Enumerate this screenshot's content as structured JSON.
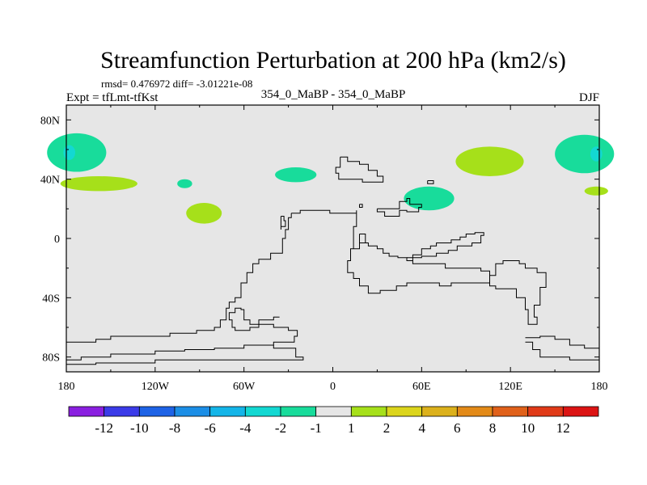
{
  "chart_data": {
    "type": "heatmap",
    "title": "Streamfunction Perturbation at 200 hPa (km2/s)",
    "stats": "rmsd= 0.476972 diff= -3.01221e-08",
    "experiment": "Expt = tfLmt-tfKst",
    "comparison": "354_0_MaBP - 354_0_MaBP",
    "season": "DJF",
    "x_axis": {
      "range": [
        -180,
        180
      ],
      "ticks": [
        -180,
        -120,
        -60,
        0,
        60,
        120,
        180
      ],
      "tick_labels": [
        "180",
        "120W",
        "60W",
        "0",
        "60E",
        "120E",
        "180"
      ]
    },
    "y_axis": {
      "range": [
        -90,
        90
      ],
      "ticks": [
        80,
        40,
        0,
        -40,
        -80
      ],
      "tick_labels": [
        "80N",
        "40N",
        "0",
        "40S",
        "80S"
      ]
    },
    "colorbar": {
      "levels": [
        "-12",
        "-10",
        "-8",
        "-6",
        "-4",
        "-2",
        "-1",
        "1",
        "2",
        "4",
        "6",
        "8",
        "10",
        "12"
      ],
      "colors": [
        "#8a1fe0",
        "#3b3be8",
        "#1e63e6",
        "#1b8ee6",
        "#14b5e8",
        "#13d8d2",
        "#18dc9b",
        "#e6e6e6",
        "#a6e01a",
        "#dcd51c",
        "#dcb11c",
        "#e38a18",
        "#e0611a",
        "#e03a18",
        "#dc1414"
      ]
    },
    "anomalies": [
      {
        "lon": -173,
        "lat": 58,
        "rx": 20,
        "ry": 13,
        "value": -1.5
      },
      {
        "lon": -178,
        "lat": 58,
        "rx": 4,
        "ry": 5,
        "value": -2.5
      },
      {
        "lon": -158,
        "lat": 37,
        "rx": 26,
        "ry": 5,
        "value": 1.5
      },
      {
        "lon": -100,
        "lat": 37,
        "rx": 5,
        "ry": 3,
        "value": -1.5
      },
      {
        "lon": -87,
        "lat": 17,
        "rx": 12,
        "ry": 7,
        "value": 1.5
      },
      {
        "lon": -25,
        "lat": 43,
        "rx": 14,
        "ry": 5,
        "value": -1.5
      },
      {
        "lon": 65,
        "lat": 27,
        "rx": 17,
        "ry": 8,
        "value": -1.5
      },
      {
        "lon": 106,
        "lat": 52,
        "rx": 23,
        "ry": 10,
        "value": 1.5
      },
      {
        "lon": 170,
        "lat": 57,
        "rx": 20,
        "ry": 13,
        "value": -1.5
      },
      {
        "lon": 178,
        "lat": 57,
        "rx": 4,
        "ry": 5,
        "value": -2.5
      },
      {
        "lon": 178,
        "lat": 32,
        "rx": 8,
        "ry": 3,
        "value": 1.5
      }
    ],
    "coastlines": [
      [
        [
          5,
          55
        ],
        [
          10,
          55
        ],
        [
          10,
          52
        ],
        [
          18,
          52
        ],
        [
          18,
          50
        ],
        [
          24,
          50
        ],
        [
          24,
          46
        ],
        [
          30,
          46
        ],
        [
          30,
          42
        ],
        [
          34,
          42
        ],
        [
          34,
          38
        ],
        [
          30,
          38
        ],
        [
          24,
          38
        ],
        [
          20,
          40
        ],
        [
          10,
          40
        ],
        [
          4,
          44
        ],
        [
          2,
          48
        ],
        [
          5,
          52
        ],
        [
          5,
          55
        ]
      ],
      [
        [
          -28,
          17
        ],
        [
          -22,
          19
        ],
        [
          -16,
          19
        ],
        [
          -12,
          19
        ],
        [
          -2,
          17
        ],
        [
          8,
          17
        ],
        [
          14,
          17
        ],
        [
          16,
          19
        ],
        [
          16,
          8
        ],
        [
          14,
          8
        ],
        [
          14,
          -7
        ],
        [
          12,
          -7
        ],
        [
          12,
          -15
        ],
        [
          10,
          -15
        ],
        [
          10,
          -23
        ],
        [
          14,
          -27
        ],
        [
          18,
          -32
        ],
        [
          24,
          -37
        ],
        [
          30,
          -37
        ],
        [
          32,
          -35
        ],
        [
          40,
          -35
        ],
        [
          43,
          -32
        ],
        [
          50,
          -30
        ],
        [
          70,
          -30
        ],
        [
          72,
          -32
        ],
        [
          76,
          -32
        ],
        [
          80,
          -30
        ],
        [
          100,
          -30
        ],
        [
          106,
          -25
        ],
        [
          110,
          -17
        ],
        [
          115,
          -15
        ],
        [
          122,
          -15
        ],
        [
          126,
          -17
        ],
        [
          130,
          -20
        ],
        [
          138,
          -23
        ],
        [
          144,
          -33
        ],
        [
          140,
          -40
        ],
        [
          140,
          -45
        ],
        [
          136,
          -53
        ],
        [
          138,
          -58
        ],
        [
          134,
          -58
        ],
        [
          132,
          -48
        ],
        [
          130,
          -40
        ],
        [
          124,
          -34
        ],
        [
          116,
          -34
        ],
        [
          110,
          -32
        ],
        [
          106,
          -32
        ],
        [
          106,
          -22
        ],
        [
          100,
          -20
        ],
        [
          82,
          -20
        ],
        [
          76,
          -17
        ],
        [
          60,
          -17
        ],
        [
          54,
          -15
        ],
        [
          50,
          -13
        ],
        [
          44,
          -12
        ],
        [
          38,
          -10
        ],
        [
          34,
          -7
        ],
        [
          30,
          -5
        ],
        [
          24,
          -3
        ],
        [
          20,
          -3
        ],
        [
          18,
          -7
        ],
        [
          14,
          -7
        ]
      ],
      [
        [
          50,
          -13
        ],
        [
          54,
          -11
        ],
        [
          60,
          -7
        ],
        [
          66,
          -5
        ],
        [
          70,
          -3
        ],
        [
          80,
          -1
        ],
        [
          86,
          1
        ],
        [
          90,
          3
        ],
        [
          96,
          4
        ],
        [
          102,
          2
        ],
        [
          100,
          -3
        ],
        [
          94,
          -5
        ],
        [
          90,
          -5
        ],
        [
          84,
          -8
        ],
        [
          78,
          -10
        ],
        [
          70,
          -12
        ],
        [
          60,
          -13
        ],
        [
          54,
          -15
        ]
      ],
      [
        [
          -28,
          17
        ],
        [
          -28,
          14
        ],
        [
          -30,
          10
        ],
        [
          -30,
          6
        ],
        [
          -32,
          0
        ],
        [
          -34,
          -10
        ],
        [
          -42,
          -14
        ],
        [
          -50,
          -17
        ],
        [
          -54,
          -23
        ],
        [
          -58,
          -30
        ],
        [
          -62,
          -40
        ],
        [
          -66,
          -43
        ],
        [
          -70,
          -47
        ],
        [
          -72,
          -55
        ],
        [
          -76,
          -60
        ],
        [
          -80,
          -62
        ],
        [
          -92,
          -64
        ],
        [
          -110,
          -66
        ],
        [
          -130,
          -66
        ],
        [
          -150,
          -68
        ],
        [
          -160,
          -70
        ],
        [
          -180,
          -72
        ]
      ],
      [
        [
          -36,
          -53
        ],
        [
          -40,
          -55
        ],
        [
          -50,
          -60
        ],
        [
          -56,
          -62
        ],
        [
          -62,
          -62
        ],
        [
          -66,
          -60
        ],
        [
          -68,
          -55
        ],
        [
          -70,
          -50
        ],
        [
          -66,
          -47
        ],
        [
          -62,
          -48
        ],
        [
          -60,
          -55
        ],
        [
          -56,
          -58
        ],
        [
          -48,
          -58
        ],
        [
          -40,
          -60
        ],
        [
          -30,
          -62
        ],
        [
          -24,
          -66
        ],
        [
          -26,
          -70
        ],
        [
          -40,
          -72
        ],
        [
          -60,
          -74
        ],
        [
          -80,
          -75
        ],
        [
          -100,
          -76
        ],
        [
          -120,
          -78
        ],
        [
          -150,
          -80
        ],
        [
          -170,
          -82
        ],
        [
          -180,
          -82
        ]
      ],
      [
        [
          -180,
          -85
        ],
        [
          -160,
          -84
        ],
        [
          -120,
          -82
        ],
        [
          -80,
          -82
        ],
        [
          -40,
          -82
        ],
        [
          -20,
          -80
        ],
        [
          -25,
          -74
        ],
        [
          -40,
          -72
        ]
      ],
      [
        [
          130,
          -67
        ],
        [
          140,
          -66
        ],
        [
          150,
          -68
        ],
        [
          160,
          -72
        ],
        [
          170,
          -74
        ],
        [
          180,
          -76
        ]
      ],
      [
        [
          130,
          -70
        ],
        [
          135,
          -75
        ],
        [
          140,
          -80
        ],
        [
          160,
          -82
        ],
        [
          180,
          -82
        ]
      ],
      [
        [
          -35,
          15
        ],
        [
          -33,
          12
        ],
        [
          -32,
          8
        ],
        [
          -35,
          6
        ],
        [
          -35,
          10
        ],
        [
          -35,
          15
        ]
      ],
      [
        [
          18,
          3
        ],
        [
          20,
          3
        ],
        [
          22,
          0
        ],
        [
          22,
          -3
        ],
        [
          18,
          0
        ],
        [
          18,
          3
        ]
      ],
      [
        [
          30,
          20
        ],
        [
          40,
          20
        ],
        [
          45,
          25
        ],
        [
          50,
          27
        ],
        [
          52,
          23
        ],
        [
          60,
          21
        ],
        [
          58,
          18
        ],
        [
          50,
          19
        ],
        [
          45,
          15
        ],
        [
          40,
          15
        ],
        [
          35,
          18
        ],
        [
          30,
          20
        ]
      ],
      [
        [
          64,
          39
        ],
        [
          68,
          39
        ],
        [
          68,
          37
        ],
        [
          64,
          37
        ],
        [
          64,
          39
        ]
      ],
      [
        [
          18,
          23
        ],
        [
          20,
          23
        ],
        [
          20,
          21
        ],
        [
          18,
          21
        ],
        [
          18,
          23
        ]
      ]
    ]
  }
}
